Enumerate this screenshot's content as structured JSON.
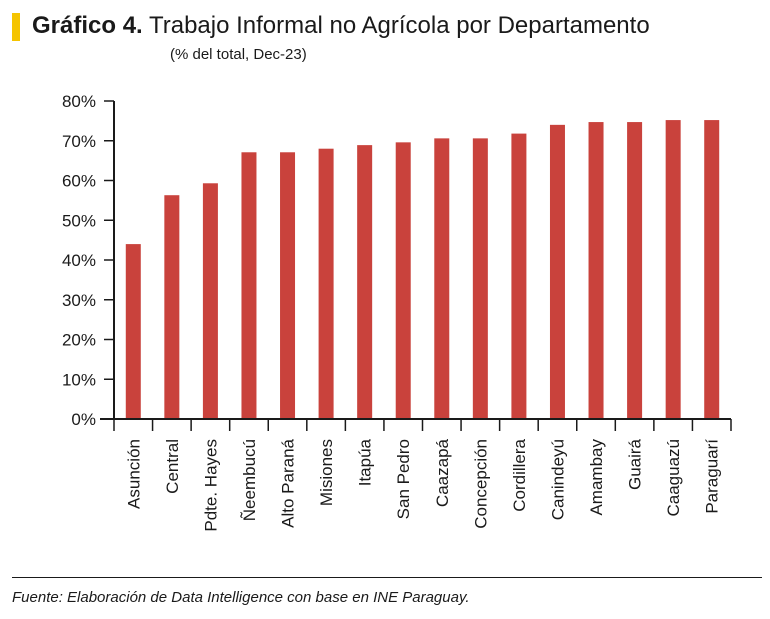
{
  "header": {
    "label": "Gráfico 4.",
    "title": "Trabajo Informal no Agrícola por Departamento",
    "subtitle": "(% del total, Dec-23)"
  },
  "footer": {
    "source": "Fuente: Elaboración de Data Intelligence con base en INE Paraguay."
  },
  "colors": {
    "accent": "#f5c400",
    "bar": "#c9423c",
    "axis": "#1a1a1a"
  },
  "chart_data": {
    "type": "bar",
    "title": "Trabajo Informal no Agrícola por Departamento",
    "subtitle": "(% del total, Dec-23)",
    "xlabel": "",
    "ylabel": "",
    "ylim": [
      0,
      80
    ],
    "yticks": [
      0,
      10,
      20,
      30,
      40,
      50,
      60,
      70,
      80
    ],
    "ytick_labels": [
      "0%",
      "10%",
      "20%",
      "30%",
      "40%",
      "50%",
      "60%",
      "70%",
      "80%"
    ],
    "grid": false,
    "legend": "none",
    "categories": [
      "Asunción",
      "Central",
      "Pdte. Hayes",
      "Ñeembucú",
      "Alto Paraná",
      "Misiones",
      "Itapúa",
      "San Pedro",
      "Caazapá",
      "Concepción",
      "Cordillera",
      "Canindeyú",
      "Amambay",
      "Guairá",
      "Caaguazú",
      "Paraguarí"
    ],
    "values": [
      44.0,
      56.3,
      59.3,
      67.1,
      67.1,
      68.0,
      68.9,
      69.6,
      70.6,
      70.6,
      71.8,
      74.0,
      74.7,
      74.7,
      75.2,
      75.2
    ]
  }
}
